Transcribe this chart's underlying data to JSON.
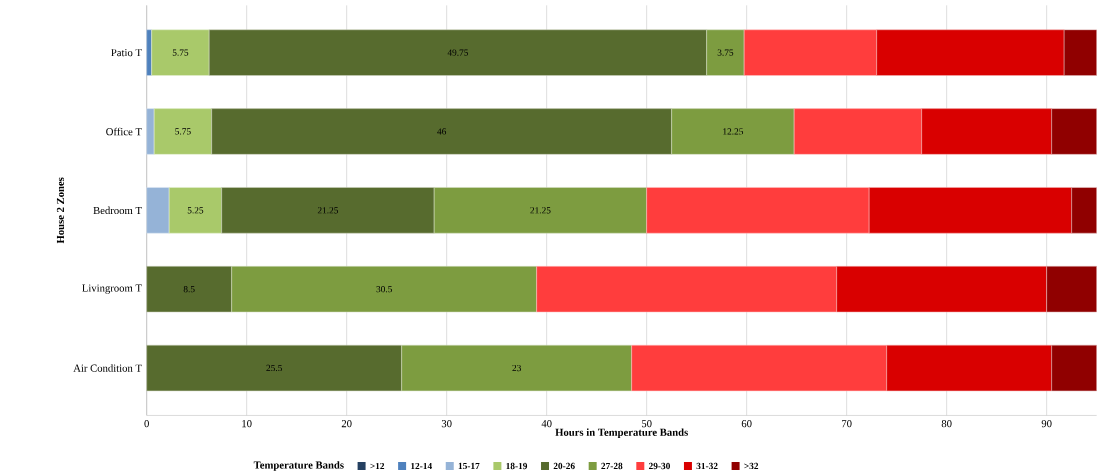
{
  "chart_data": {
    "type": "bar",
    "orientation": "horizontal",
    "stacked": true,
    "xlabel": "Hours in Temperature Bands",
    "ylabel": "House 2 Zones",
    "legend_title": "Temperature Bands",
    "legend": "bottom",
    "grid": "x",
    "categories": [
      "Patio T",
      "Office T",
      "Bedroom T",
      "Livingroom T",
      "Air Condition T"
    ],
    "xlim": [
      0,
      95
    ],
    "xticks": [
      0,
      10,
      20,
      30,
      40,
      50,
      60,
      70,
      80,
      90
    ],
    "series": [
      {
        "name": ">12",
        "color": "#254061",
        "values": [
          null,
          null,
          null,
          null,
          null
        ]
      },
      {
        "name": "12-14",
        "color": "#4f81bd",
        "values": [
          0.5,
          null,
          null,
          null,
          null
        ]
      },
      {
        "name": "15-17",
        "color": "#95b3d7",
        "values": [
          null,
          0.75,
          2.25,
          null,
          null
        ]
      },
      {
        "name": "18-19",
        "color": "#a9c96a",
        "values": [
          5.75,
          5.75,
          5.25,
          null,
          null
        ],
        "value_labels": [
          "5.75",
          "5.75",
          "5.25",
          null,
          null
        ]
      },
      {
        "name": "20-26",
        "color": "#576b2e",
        "values": [
          49.75,
          46,
          21.25,
          8.5,
          25.5
        ],
        "value_labels": [
          "49.75",
          "46",
          "21.25",
          "8.5",
          "25.5"
        ]
      },
      {
        "name": "27-28",
        "color": "#7d9c40",
        "values": [
          3.75,
          12.25,
          21.25,
          30.5,
          23
        ],
        "value_labels": [
          "3.75",
          "12.25",
          "21.25",
          "30.5",
          "23"
        ]
      },
      {
        "name": "29-30",
        "color": "#ff3d3d",
        "values": [
          13.25,
          12.75,
          22.25,
          30,
          25.5
        ]
      },
      {
        "name": "31-32",
        "color": "#d90000",
        "values": [
          18.75,
          13,
          20.25,
          21,
          16.5
        ]
      },
      {
        "name": ">32",
        "color": "#900000",
        "values": [
          3.25,
          4.5,
          2.5,
          5,
          4.5
        ]
      }
    ]
  }
}
